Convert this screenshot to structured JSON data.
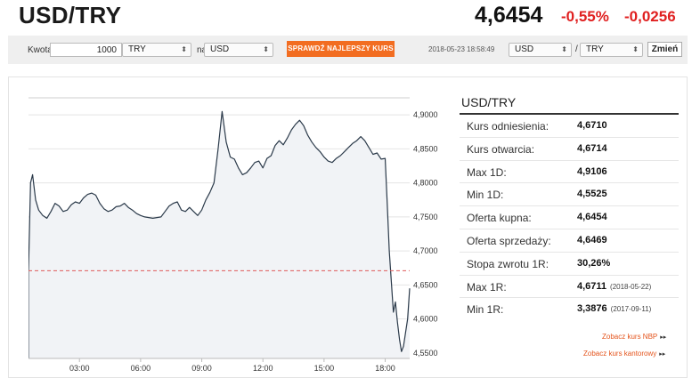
{
  "header": {
    "pair": "USD/TRY",
    "rate": "4,6454",
    "change_pct": "-0,55%",
    "change_abs": "-0,0256"
  },
  "toolbar": {
    "amount_label": "Kwota",
    "amount_value": "1000",
    "from_currency": "TRY",
    "na_label": "na",
    "to_currency": "USD",
    "best_rate_button": "SPRAWDŹ NAJLEPSZY KURS",
    "timestamp": "2018-05-23 18:58:49",
    "base_currency": "USD",
    "separator": "/",
    "quote_currency": "TRY",
    "change_button": "Zmień"
  },
  "stats": {
    "title": "USD/TRY",
    "rows": [
      {
        "label": "Kurs odniesienia:",
        "value": "4,6710",
        "date": ""
      },
      {
        "label": "Kurs otwarcia:",
        "value": "4,6714",
        "date": ""
      },
      {
        "label": "Max 1D:",
        "value": "4,9106",
        "date": ""
      },
      {
        "label": "Min 1D:",
        "value": "4,5525",
        "date": ""
      },
      {
        "label": "Oferta kupna:",
        "value": "4,6454",
        "date": ""
      },
      {
        "label": "Oferta sprzedaży:",
        "value": "4,6469",
        "date": ""
      },
      {
        "label": "Stopa zwrotu 1R:",
        "value": "30,26%",
        "date": ""
      },
      {
        "label": "Max 1R:",
        "value": "4,6711",
        "date": "(2018-05-22)"
      },
      {
        "label": "Min 1R:",
        "value": "3,3876",
        "date": "(2017-09-11)"
      }
    ]
  },
  "links": {
    "nbp": "Zobacz kurs NBP",
    "kantor": "Zobacz kurs kantorowy"
  },
  "colors": {
    "accent_orange": "#f26d21",
    "negative_red": "#e02020",
    "line": "#2b3a4a",
    "reference_line": "#e05a5a"
  },
  "chart_data": {
    "type": "area",
    "x_ticks": [
      "03:00",
      "06:00",
      "09:00",
      "12:00",
      "15:00",
      "18:00"
    ],
    "y_ticks": [
      "4,9000",
      "4,8500",
      "4,8000",
      "4,7500",
      "4,7000",
      "4,6500",
      "4,6000",
      "4,5500"
    ],
    "ylim": [
      4.542,
      4.925
    ],
    "xlim": [
      0.5,
      19.2
    ],
    "reference_value": 4.671,
    "series": [
      {
        "x": [
          0.5,
          0.6,
          0.7,
          0.85,
          1.0,
          1.2,
          1.4,
          1.6,
          1.8,
          2.0,
          2.2,
          2.4,
          2.6,
          2.8,
          3.0,
          3.2,
          3.4,
          3.6,
          3.8,
          4.0,
          4.2,
          4.4,
          4.6,
          4.8,
          5.0,
          5.2,
          5.4,
          5.6,
          5.8,
          6.0,
          6.2,
          6.4,
          6.6,
          6.8,
          7.0,
          7.2,
          7.4,
          7.6,
          7.8,
          8.0,
          8.2,
          8.4,
          8.6,
          8.8,
          9.0,
          9.2,
          9.4,
          9.6,
          9.8,
          10.0,
          10.2,
          10.4,
          10.6,
          10.8,
          11.0,
          11.2,
          11.4,
          11.6,
          11.8,
          12.0,
          12.2,
          12.4,
          12.6,
          12.8,
          13.0,
          13.2,
          13.4,
          13.6,
          13.8,
          14.0,
          14.2,
          14.4,
          14.6,
          14.8,
          15.0,
          15.2,
          15.4,
          15.6,
          15.8,
          16.0,
          16.2,
          16.4,
          16.6,
          16.8,
          17.0,
          17.2,
          17.4,
          17.6,
          17.8,
          18.0,
          18.1,
          18.2,
          18.3,
          18.4,
          18.5,
          18.6,
          18.7,
          18.8,
          18.9,
          19.0,
          19.1,
          19.2
        ],
        "y": [
          4.671,
          4.8,
          4.812,
          4.775,
          4.76,
          4.752,
          4.748,
          4.758,
          4.77,
          4.766,
          4.758,
          4.76,
          4.768,
          4.772,
          4.77,
          4.778,
          4.783,
          4.785,
          4.782,
          4.77,
          4.762,
          4.758,
          4.76,
          4.765,
          4.766,
          4.77,
          4.764,
          4.76,
          4.755,
          4.752,
          4.75,
          4.749,
          4.748,
          4.749,
          4.75,
          4.758,
          4.766,
          4.77,
          4.772,
          4.76,
          4.758,
          4.764,
          4.758,
          4.752,
          4.76,
          4.775,
          4.786,
          4.8,
          4.85,
          4.905,
          4.86,
          4.838,
          4.835,
          4.822,
          4.812,
          4.815,
          4.822,
          4.83,
          4.832,
          4.822,
          4.836,
          4.84,
          4.855,
          4.862,
          4.856,
          4.866,
          4.878,
          4.886,
          4.892,
          4.884,
          4.87,
          4.86,
          4.852,
          4.846,
          4.838,
          4.832,
          4.83,
          4.836,
          4.84,
          4.846,
          4.852,
          4.858,
          4.862,
          4.868,
          4.862,
          4.852,
          4.842,
          4.844,
          4.835,
          4.836,
          4.77,
          4.7,
          4.655,
          4.61,
          4.625,
          4.595,
          4.57,
          4.552,
          4.56,
          4.58,
          4.6,
          4.645
        ]
      }
    ]
  }
}
